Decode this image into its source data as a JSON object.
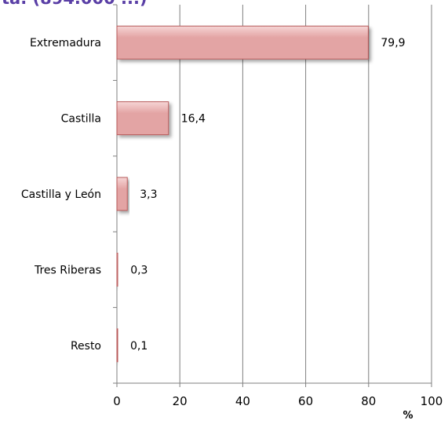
{
  "header": {
    "partial_title": "ta. (894.000 ...)"
  },
  "colors": {
    "bar_fill": "#e3a4a4",
    "bar_stroke": "#b85a5a",
    "bar_highlight": "#f6d6d6",
    "gridline": "#7f7f7f",
    "title": "#5a3fa6"
  },
  "chart_data": {
    "type": "bar",
    "orientation": "horizontal",
    "categories": [
      "Extremadura",
      "Castilla",
      "Castilla y León",
      "Tres Riberas",
      "Resto"
    ],
    "values": [
      79.9,
      16.4,
      3.3,
      0.3,
      0.1
    ],
    "value_labels": [
      "79,9",
      "16,4",
      "3,3",
      "0,3",
      "0,1"
    ],
    "x_ticks": [
      0,
      20,
      40,
      60,
      80,
      100
    ],
    "xlim": [
      0,
      100
    ],
    "xlabel": "%",
    "ylabel": "",
    "grid": true
  }
}
